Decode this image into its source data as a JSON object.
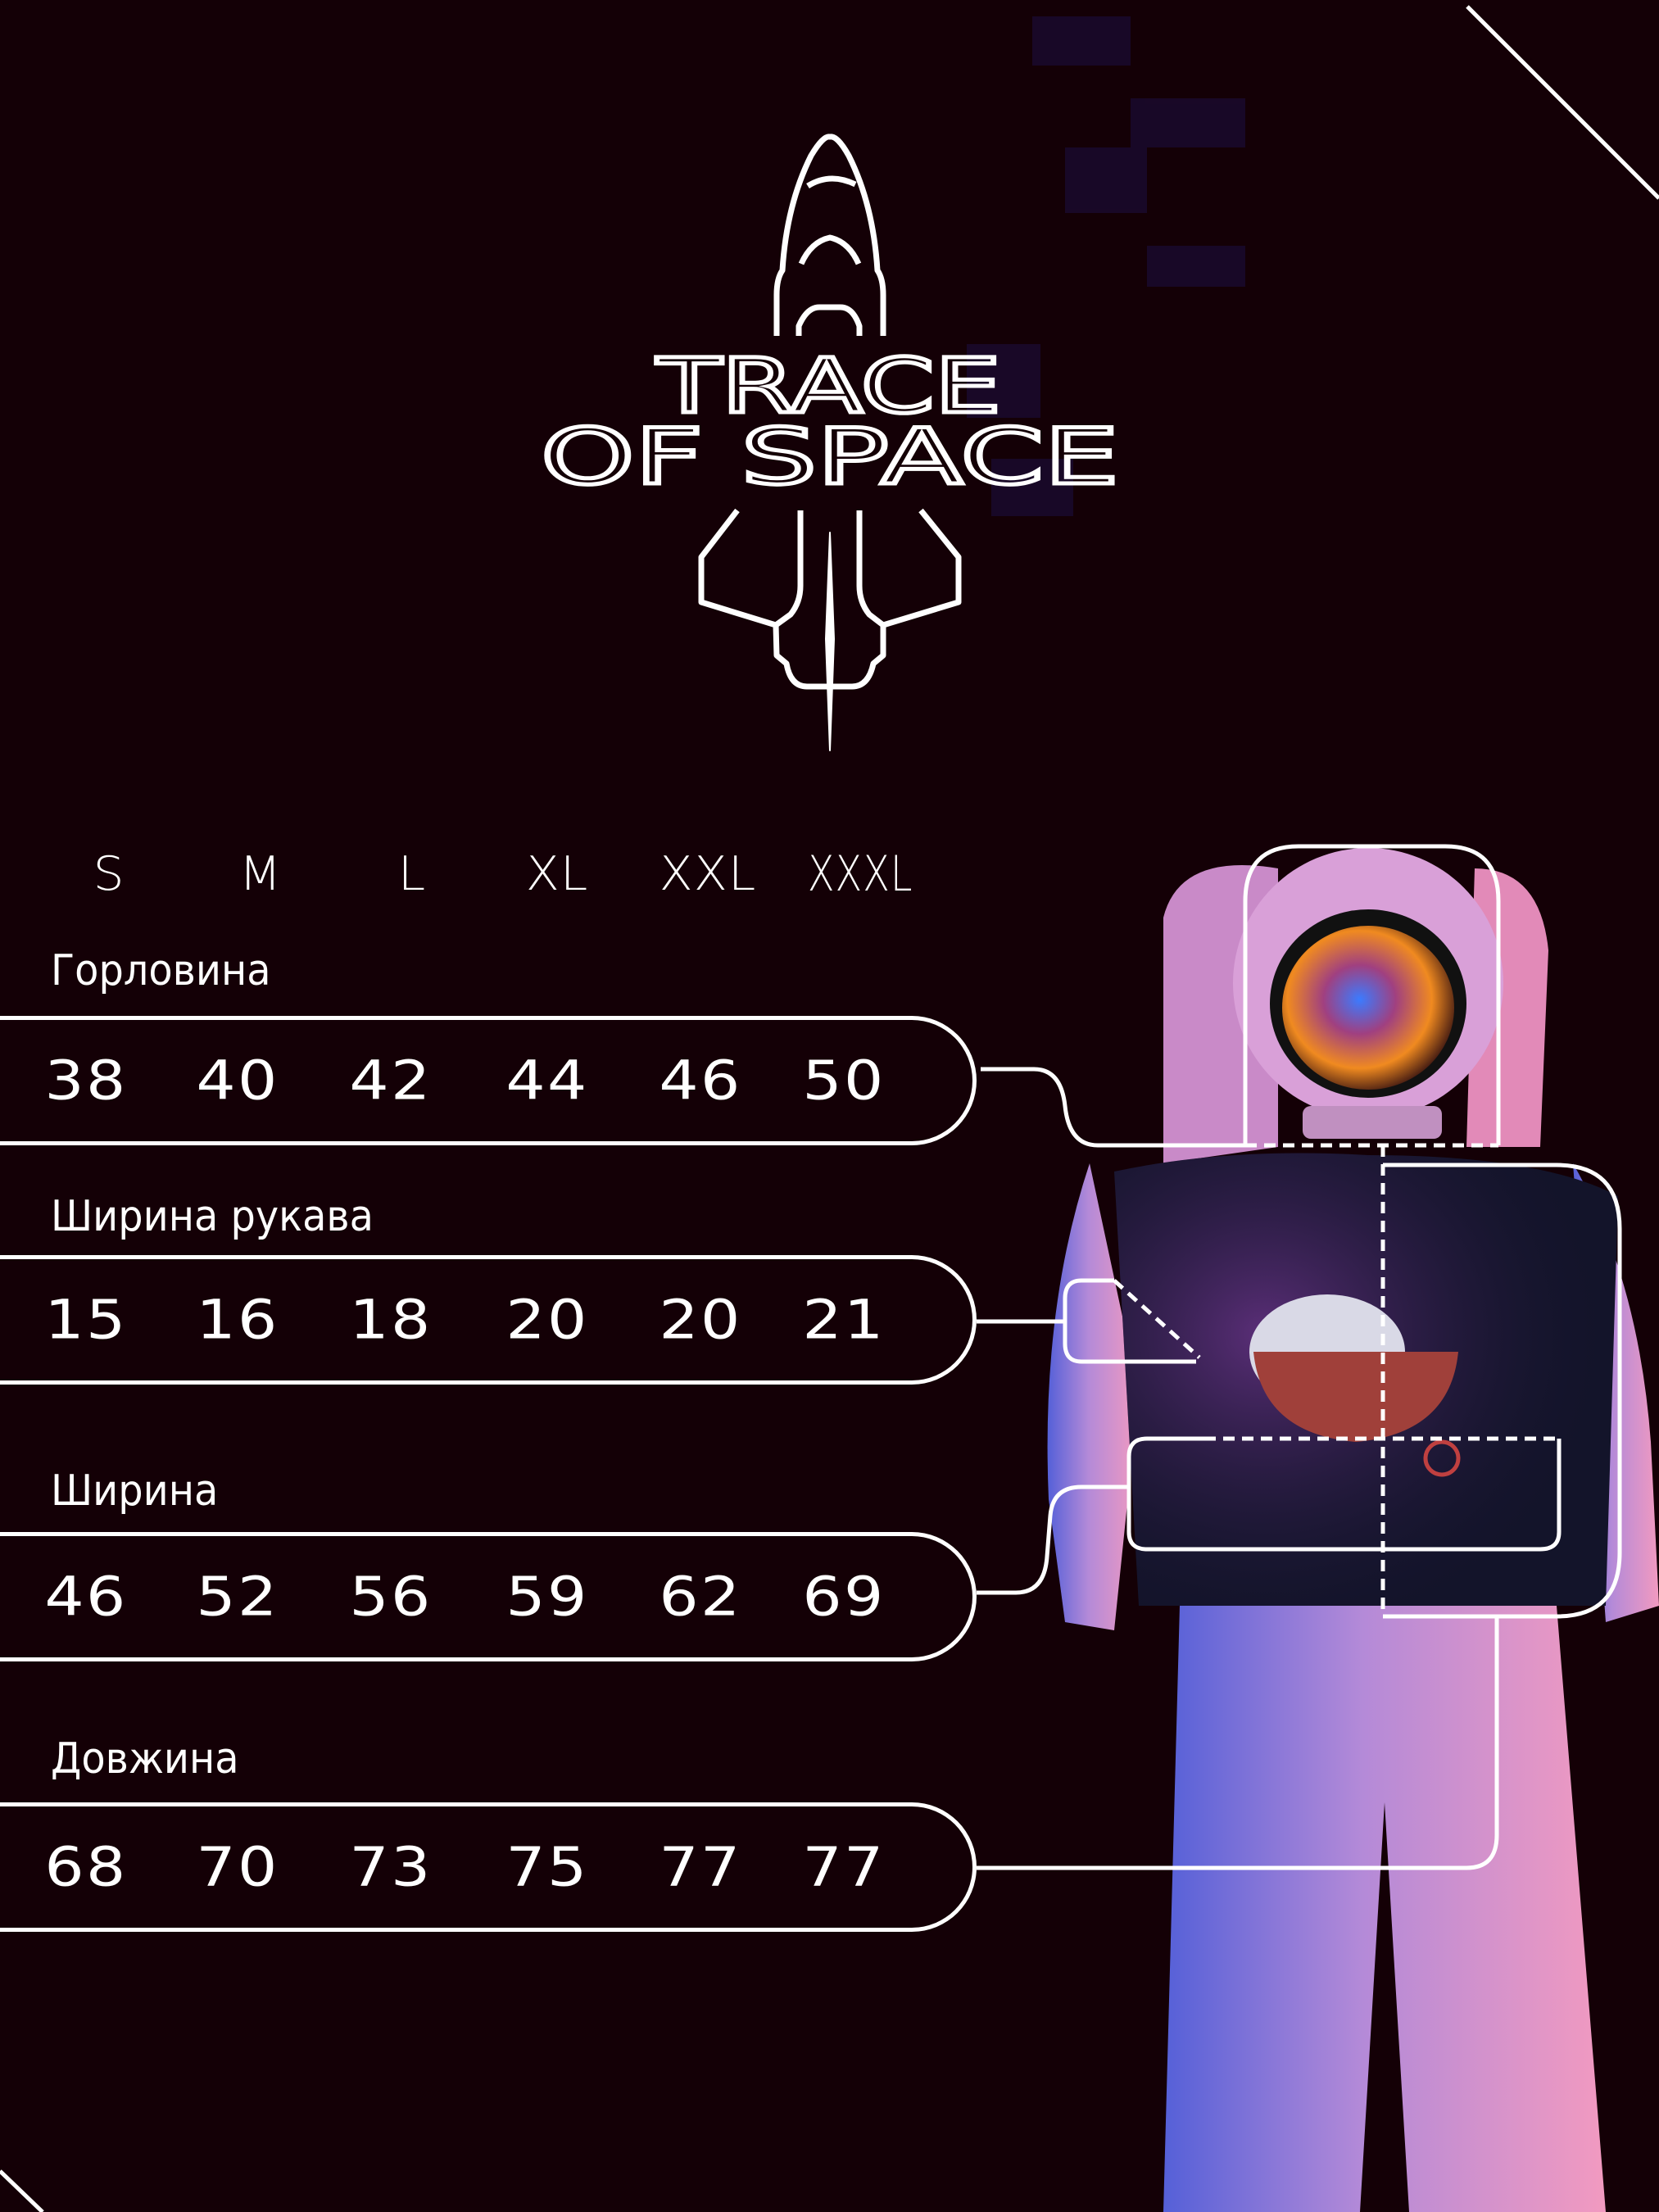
{
  "brand": {
    "line1": "TRACE",
    "line2": "OF SPACE"
  },
  "sizes": [
    "S",
    "M",
    "L",
    "XL",
    "XXL",
    "XXXL"
  ],
  "measurements": [
    {
      "label": "Горловина",
      "values": [
        "38",
        "40",
        "42",
        "44",
        "46",
        "50"
      ]
    },
    {
      "label": "Ширина рукава",
      "values": [
        "15",
        "16",
        "18",
        "20",
        "20",
        "21"
      ]
    },
    {
      "label": "Ширина",
      "values": [
        "46",
        "52",
        "56",
        "59",
        "62",
        "69"
      ]
    },
    {
      "label": "Довжина",
      "values": [
        "68",
        "70",
        "73",
        "75",
        "77",
        "77"
      ]
    }
  ],
  "colors": {
    "background": "#140006",
    "lines": "#ffffff"
  }
}
